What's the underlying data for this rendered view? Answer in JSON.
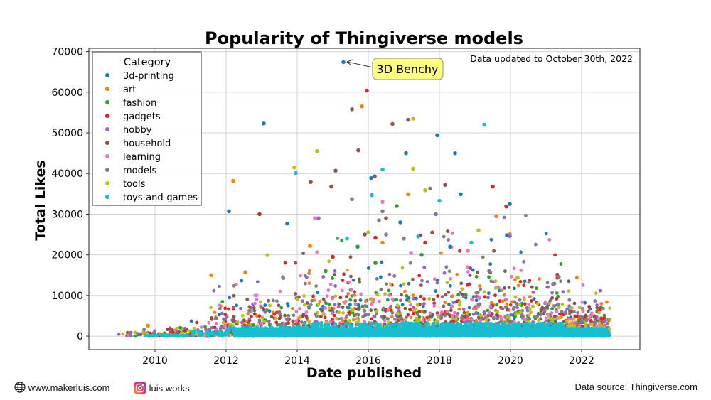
{
  "chart_data": {
    "type": "scatter",
    "title": "Popularity of Thingiverse models",
    "xlabel": "Date published",
    "ylabel": "Total Likes",
    "xlim": [
      2008.14,
      2023.64
    ],
    "ylim": [
      -3300,
      70800
    ],
    "xticks": [
      2010,
      2012,
      2014,
      2016,
      2018,
      2020,
      2022
    ],
    "yticks": [
      0,
      10000,
      20000,
      30000,
      40000,
      50000,
      60000,
      70000
    ],
    "grid": true,
    "legend": {
      "title": "Category",
      "placement": "top-left"
    },
    "annotation_top": "Data updated to October 30th, 2022",
    "callout": {
      "text": "3D Benchy",
      "x": 2015.3,
      "y": 67400,
      "box_color": "#ffff80"
    },
    "series": [
      {
        "name": "3d-printing",
        "color": "#1f77b4",
        "points": [
          [
            2015.3,
            67400
          ],
          [
            2013.06,
            52300
          ],
          [
            2017.94,
            49400
          ],
          [
            2018.44,
            45000
          ],
          [
            2017.06,
            45000
          ],
          [
            2016.08,
            38900
          ],
          [
            2018.6,
            34900
          ],
          [
            2019.98,
            32500
          ],
          [
            2012.08,
            30700
          ],
          [
            2013.72,
            27700
          ],
          [
            2016.9,
            28000
          ],
          [
            2019.9,
            24800
          ],
          [
            2018.3,
            22000
          ]
        ]
      },
      {
        "name": "art",
        "color": "#ff7f0e",
        "points": [
          [
            2015.82,
            56500
          ],
          [
            2012.2,
            38200
          ],
          [
            2017.12,
            34900
          ],
          [
            2019.6,
            29500
          ],
          [
            2019.98,
            25100
          ],
          [
            2011.58,
            15000
          ],
          [
            2012.54,
            15700
          ],
          [
            2014.36,
            22200
          ],
          [
            2009.8,
            2600
          ],
          [
            2016.4,
            23000
          ]
        ]
      },
      {
        "name": "fashion",
        "color": "#2ca02c",
        "points": [
          [
            2016.8,
            32000
          ],
          [
            2015.7,
            22000
          ],
          [
            2017.5,
            20000
          ],
          [
            2014.8,
            16000
          ],
          [
            2016.2,
            18000
          ]
        ]
      },
      {
        "name": "gadgets",
        "color": "#d62728",
        "points": [
          [
            2015.96,
            60400
          ],
          [
            2019.5,
            36800
          ],
          [
            2019.88,
            31900
          ],
          [
            2012.94,
            30000
          ],
          [
            2016.2,
            24200
          ],
          [
            2015.0,
            19500
          ],
          [
            2017.6,
            23000
          ]
        ]
      },
      {
        "name": "hobby",
        "color": "#9467bd",
        "points": [
          [
            2019.98,
            24600
          ],
          [
            2017.9,
            30000
          ],
          [
            2016.5,
            25000
          ],
          [
            2019.4,
            16000
          ],
          [
            2021.2,
            12800
          ],
          [
            2014.6,
            29000
          ]
        ]
      },
      {
        "name": "household",
        "color": "#8c564b",
        "points": [
          [
            2015.54,
            55800
          ],
          [
            2017.12,
            53200
          ],
          [
            2016.68,
            52200
          ],
          [
            2015.72,
            45700
          ],
          [
            2015.08,
            40700
          ],
          [
            2016.18,
            39300
          ],
          [
            2014.38,
            37900
          ],
          [
            2014.96,
            36800
          ],
          [
            2018.16,
            37200
          ],
          [
            2016.5,
            29000
          ],
          [
            2015.9,
            25000
          ],
          [
            2017.8,
            25500
          ]
        ]
      },
      {
        "name": "learning",
        "color": "#e377c2",
        "points": [
          [
            2014.5,
            29000
          ],
          [
            2016.4,
            33000
          ],
          [
            2017.2,
            20500
          ],
          [
            2018.8,
            21000
          ]
        ]
      },
      {
        "name": "models",
        "color": "#7f7f7f",
        "points": [
          [
            2017.74,
            36300
          ],
          [
            2015.54,
            33700
          ],
          [
            2016.4,
            30700
          ],
          [
            2016.3,
            28500
          ],
          [
            2013.6,
            14500
          ],
          [
            2017.0,
            24000
          ]
        ]
      },
      {
        "name": "tools",
        "color": "#bcbd22",
        "points": [
          [
            2017.26,
            53500
          ],
          [
            2014.56,
            45500
          ],
          [
            2013.92,
            41500
          ],
          [
            2017.26,
            41200
          ],
          [
            2017.6,
            35900
          ],
          [
            2013.16,
            19900
          ],
          [
            2019.1,
            26000
          ],
          [
            2016.0,
            25500
          ],
          [
            2020.2,
            14400
          ]
        ]
      },
      {
        "name": "toys-and-games",
        "color": "#17becf",
        "points": [
          [
            2019.26,
            52000
          ],
          [
            2016.4,
            41000
          ],
          [
            2013.96,
            40100
          ],
          [
            2018.0,
            33300
          ],
          [
            2016.1,
            34700
          ],
          [
            2015.4,
            24000
          ],
          [
            2017.4,
            24500
          ],
          [
            2018.9,
            23000
          ]
        ]
      }
    ]
  },
  "footer": {
    "website": "www.makerluis.com",
    "instagram": "luis.works",
    "source": "Data source: Thingiverse.com"
  }
}
